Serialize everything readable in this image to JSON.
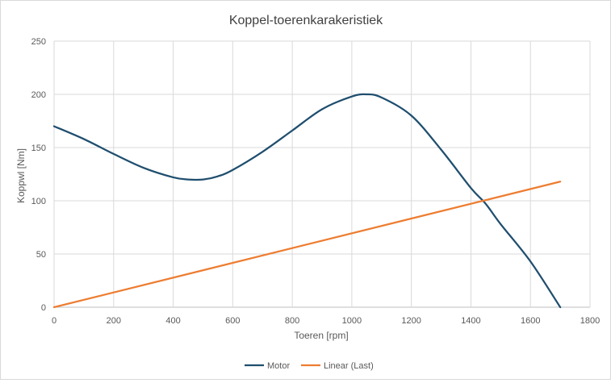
{
  "chart_data": {
    "type": "line",
    "title": "Koppel-toerenkarakeristiek",
    "xlabel": "Toeren [rpm]",
    "ylabel": "Koppwl [Nm]",
    "xlim": [
      0,
      1800
    ],
    "ylim": [
      0,
      250
    ],
    "xticks": [
      0,
      200,
      400,
      600,
      800,
      1000,
      1200,
      1400,
      1600,
      1800
    ],
    "yticks": [
      0,
      50,
      100,
      150,
      200,
      250
    ],
    "grid": true,
    "legend": "bottom",
    "series": [
      {
        "name": "Motor",
        "color": "#1f4e6e",
        "x": [
          0,
          100,
          200,
          300,
          400,
          450,
          500,
          550,
          600,
          700,
          800,
          900,
          1000,
          1050,
          1100,
          1200,
          1300,
          1400,
          1450,
          1500,
          1600,
          1700
        ],
        "y": [
          170,
          158,
          144,
          131,
          122,
          120,
          120,
          123,
          129,
          146,
          166,
          186,
          198,
          200,
          197,
          180,
          148,
          112,
          97,
          78,
          43,
          0
        ]
      },
      {
        "name": "Linear (Last)",
        "color": "#ed7d31",
        "x": [
          0,
          1700
        ],
        "y": [
          0,
          118
        ]
      }
    ]
  }
}
